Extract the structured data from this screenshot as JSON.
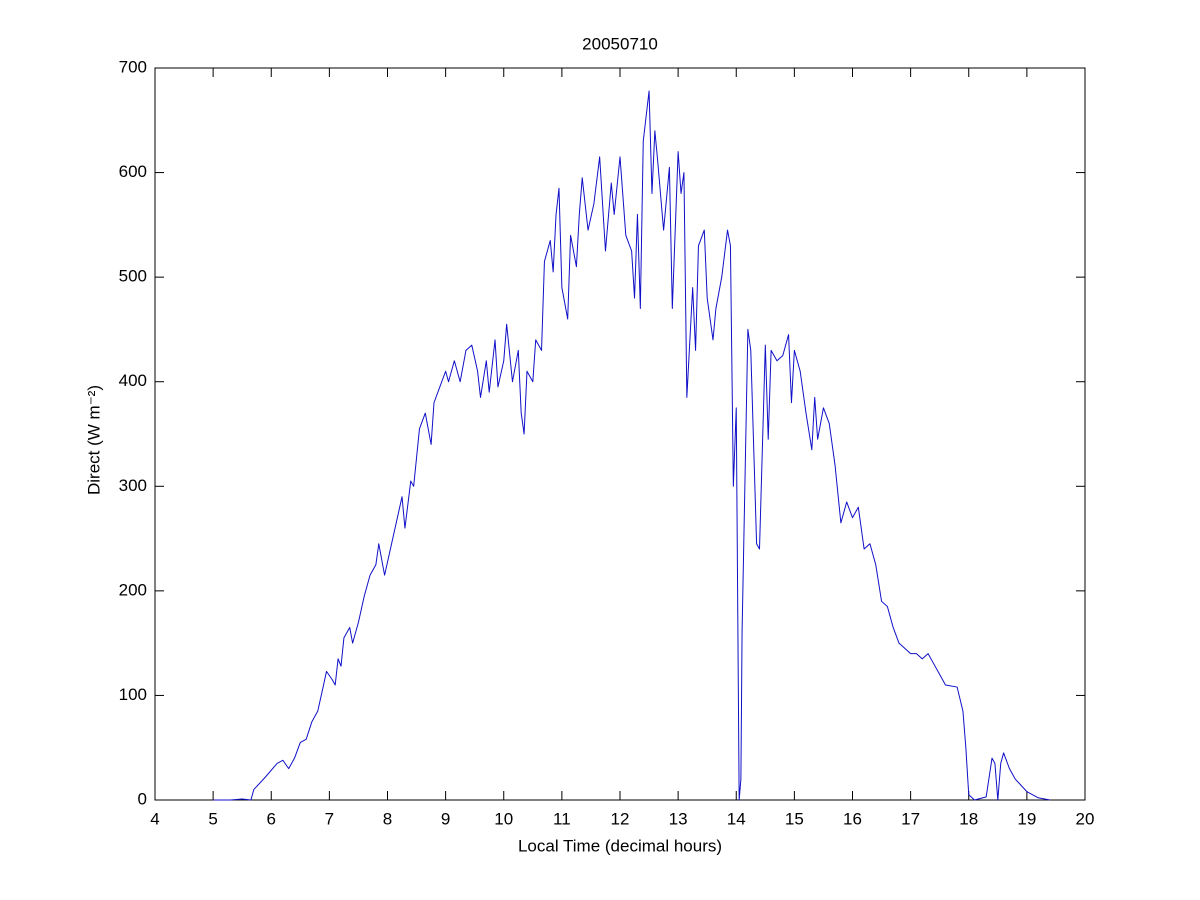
{
  "chart_data": {
    "type": "line",
    "title": "20050710",
    "x_label": "Local Time (decimal hours)",
    "y_label": "Direct (W m⁻²)",
    "xlim": [
      4,
      20
    ],
    "xticks": [
      4,
      5,
      6,
      7,
      8,
      9,
      10,
      11,
      12,
      13,
      14,
      15,
      16,
      17,
      18,
      19,
      20
    ],
    "ylim": [
      0,
      700
    ],
    "yticks": [
      0,
      100,
      200,
      300,
      400,
      500,
      600,
      700
    ],
    "grid": false,
    "x": [
      5.0,
      5.3,
      5.5,
      5.65,
      5.7,
      5.9,
      6.1,
      6.2,
      6.3,
      6.4,
      6.5,
      6.6,
      6.7,
      6.8,
      6.9,
      6.95,
      7.05,
      7.1,
      7.15,
      7.2,
      7.25,
      7.35,
      7.4,
      7.5,
      7.6,
      7.7,
      7.8,
      7.85,
      7.95,
      8.05,
      8.15,
      8.25,
      8.3,
      8.4,
      8.45,
      8.55,
      8.65,
      8.75,
      8.8,
      8.9,
      9.0,
      9.05,
      9.15,
      9.25,
      9.35,
      9.45,
      9.55,
      9.6,
      9.7,
      9.75,
      9.85,
      9.9,
      10.0,
      10.05,
      10.15,
      10.25,
      10.3,
      10.35,
      10.4,
      10.5,
      10.55,
      10.65,
      10.7,
      10.8,
      10.85,
      10.9,
      10.95,
      11.0,
      11.1,
      11.15,
      11.25,
      11.3,
      11.35,
      11.45,
      11.55,
      11.65,
      11.75,
      11.85,
      11.9,
      12.0,
      12.1,
      12.2,
      12.25,
      12.3,
      12.35,
      12.4,
      12.5,
      12.55,
      12.6,
      12.65,
      12.75,
      12.85,
      12.9,
      13.0,
      13.05,
      13.1,
      13.15,
      13.25,
      13.3,
      13.35,
      13.45,
      13.5,
      13.6,
      13.65,
      13.75,
      13.85,
      13.9,
      13.95,
      14.0,
      14.05,
      14.08,
      14.1,
      14.2,
      14.25,
      14.35,
      14.4,
      14.5,
      14.55,
      14.6,
      14.7,
      14.8,
      14.9,
      14.95,
      15.0,
      15.1,
      15.2,
      15.3,
      15.35,
      15.4,
      15.5,
      15.6,
      15.7,
      15.8,
      15.9,
      16.0,
      16.1,
      16.2,
      16.3,
      16.4,
      16.5,
      16.6,
      16.7,
      16.8,
      16.9,
      17.0,
      17.1,
      17.2,
      17.3,
      17.4,
      17.5,
      17.6,
      17.8,
      17.9,
      17.95,
      18.0,
      18.1,
      18.3,
      18.4,
      18.45,
      18.5,
      18.55,
      18.6,
      18.7,
      18.8,
      19.0,
      19.2,
      19.4
    ],
    "series": [
      {
        "color": "#1010c8",
        "values": [
          0,
          0,
          1,
          0,
          10,
          22,
          35,
          38,
          30,
          40,
          55,
          58,
          75,
          85,
          110,
          123,
          115,
          110,
          135,
          128,
          155,
          165,
          150,
          170,
          195,
          215,
          225,
          245,
          215,
          240,
          265,
          290,
          260,
          305,
          300,
          355,
          370,
          340,
          380,
          395,
          410,
          400,
          420,
          400,
          430,
          435,
          410,
          385,
          420,
          390,
          440,
          395,
          420,
          455,
          400,
          430,
          370,
          350,
          410,
          400,
          440,
          430,
          515,
          535,
          505,
          560,
          585,
          490,
          460,
          540,
          510,
          560,
          595,
          545,
          570,
          615,
          525,
          590,
          560,
          615,
          540,
          525,
          480,
          560,
          470,
          630,
          678,
          580,
          640,
          610,
          545,
          605,
          470,
          620,
          580,
          600,
          385,
          490,
          430,
          530,
          545,
          480,
          440,
          470,
          500,
          545,
          530,
          300,
          375,
          0,
          20,
          160,
          450,
          430,
          245,
          240,
          435,
          345,
          430,
          420,
          425,
          445,
          380,
          430,
          410,
          370,
          335,
          385,
          345,
          375,
          360,
          320,
          265,
          285,
          270,
          280,
          240,
          245,
          225,
          190,
          185,
          165,
          150,
          145,
          140,
          140,
          135,
          140,
          130,
          120,
          110,
          108,
          85,
          50,
          5,
          0,
          3,
          40,
          35,
          0,
          35,
          45,
          30,
          20,
          8,
          2,
          0
        ]
      }
    ]
  }
}
